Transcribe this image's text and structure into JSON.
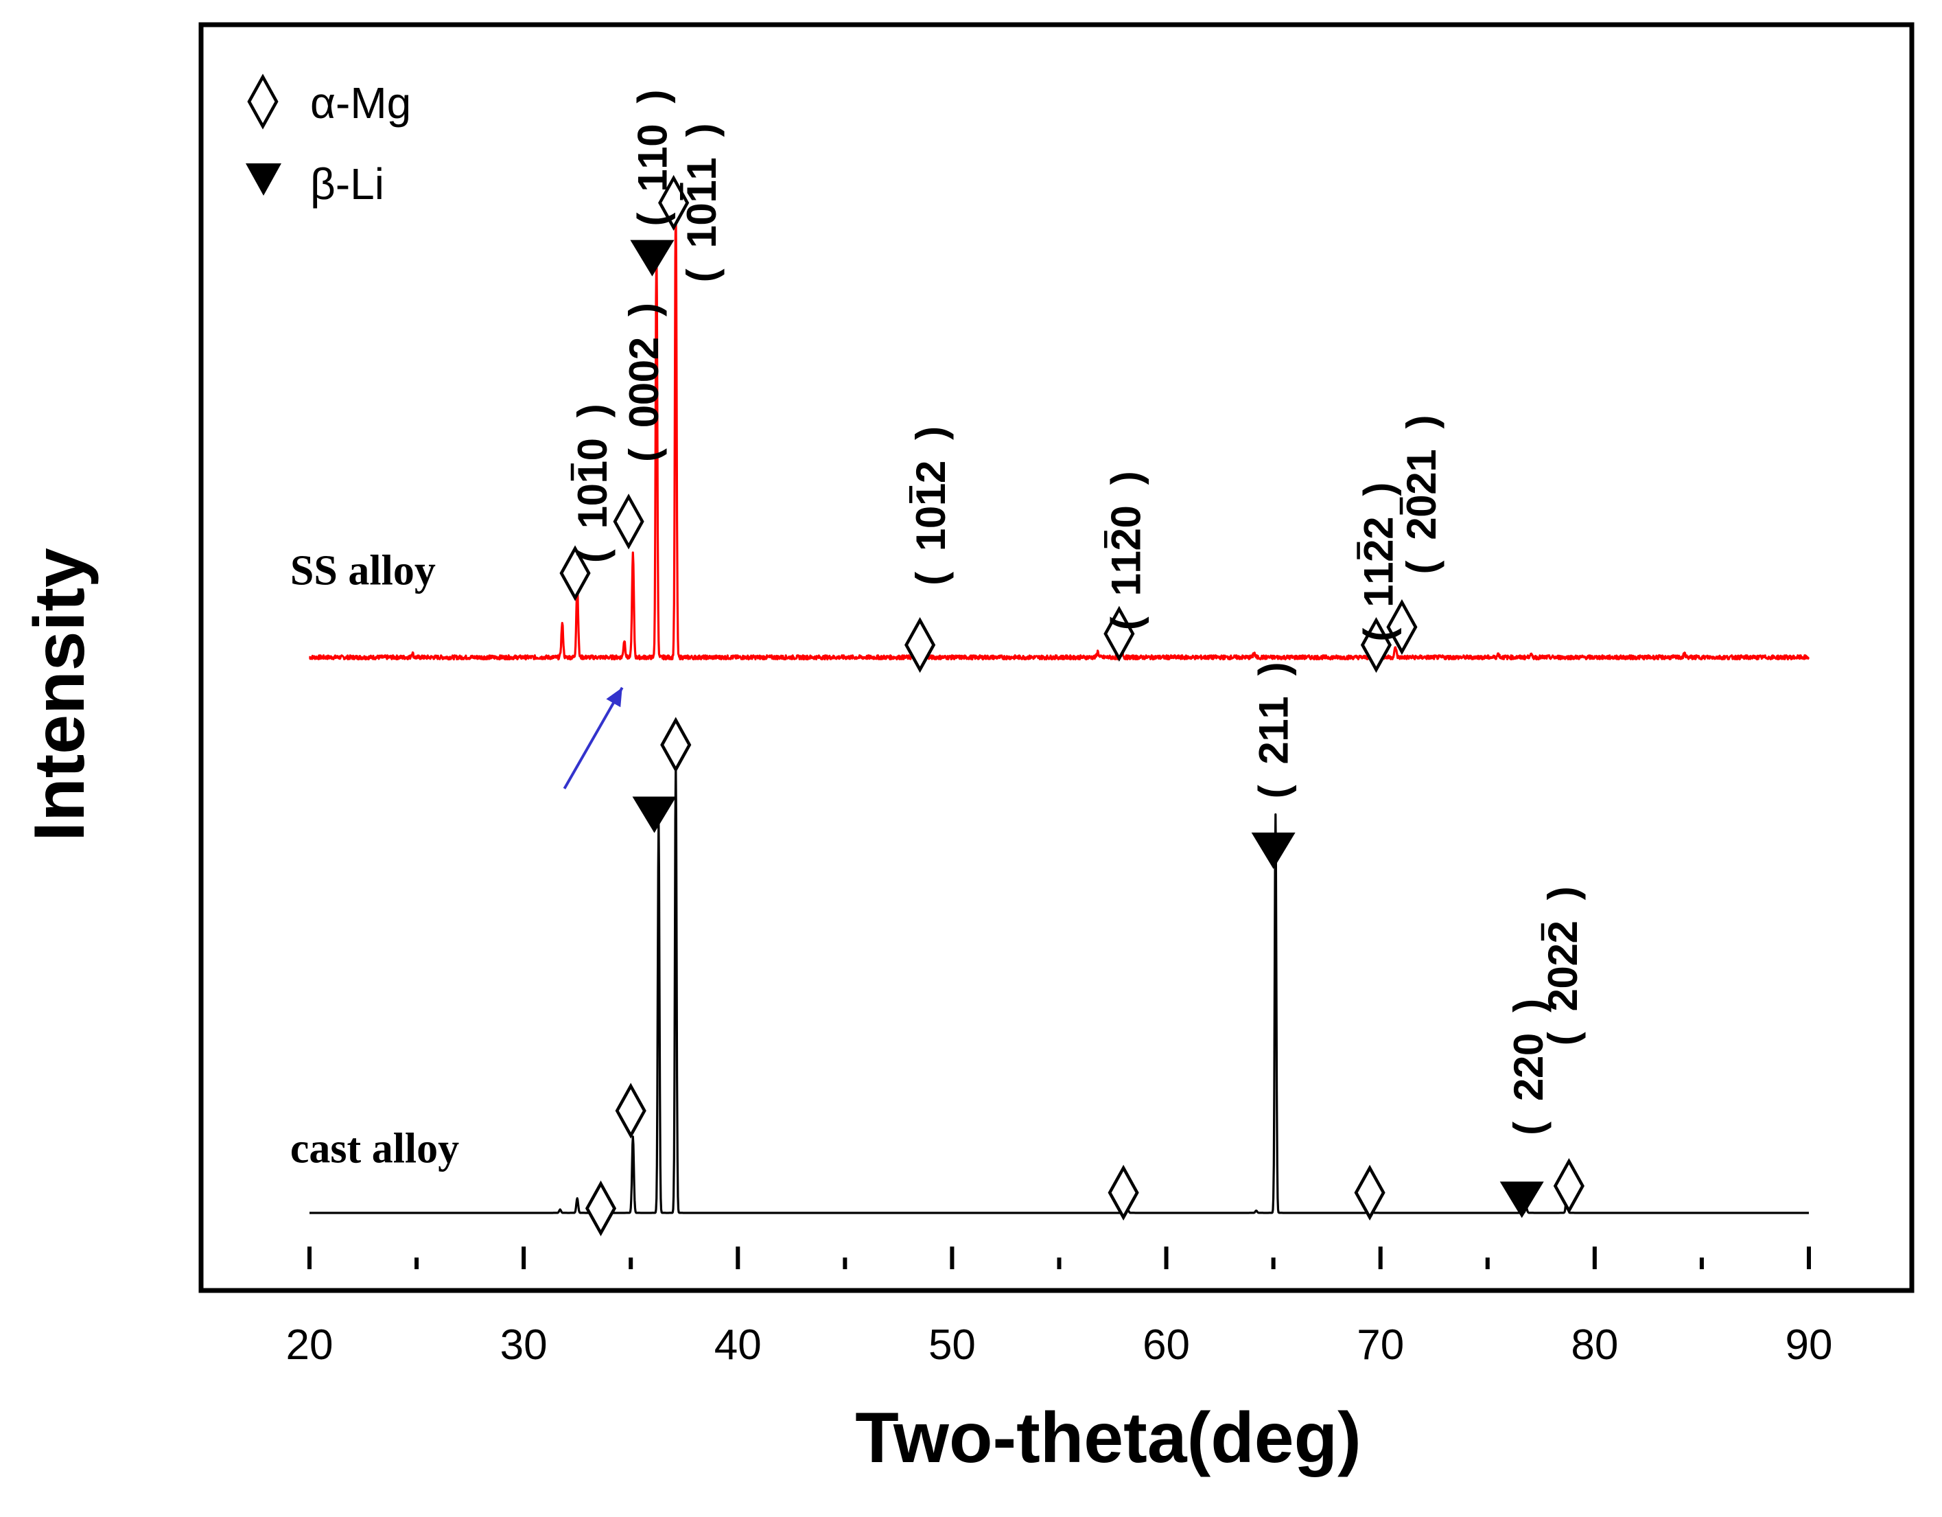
{
  "chart_data": {
    "type": "line",
    "title": "",
    "xlabel": "Two-theta(deg)",
    "ylabel": "Intensity",
    "xlim": [
      15,
      95
    ],
    "ylim": [
      0,
      100
    ],
    "x_ticks": [
      20,
      30,
      40,
      50,
      60,
      70,
      80,
      90
    ],
    "x_tick_labels": [
      "20",
      "30",
      "40",
      "50",
      "60",
      "70",
      "80",
      "90"
    ],
    "legend": {
      "position": "top-left",
      "entries": [
        {
          "symbol": "open-diamond",
          "label": "α-Mg"
        },
        {
          "symbol": "filled-down-triangle",
          "label": "β-Li"
        }
      ]
    },
    "series": [
      {
        "name": "SS alloy",
        "color": "#ff0000",
        "baseline": 52.5,
        "range": [
          20,
          90
        ],
        "peaks": [
          {
            "x": 24.8,
            "y": 0.4
          },
          {
            "x": 31.8,
            "y": 3.0
          },
          {
            "x": 32.5,
            "y": 6.5
          },
          {
            "x": 34.7,
            "y": 1.5
          },
          {
            "x": 35.1,
            "y": 9.2
          },
          {
            "x": 36.2,
            "y": 36.5
          },
          {
            "x": 37.1,
            "y": 40.5
          },
          {
            "x": 48.6,
            "y": 0.8
          },
          {
            "x": 56.8,
            "y": 0.5
          },
          {
            "x": 57.9,
            "y": 1.8
          },
          {
            "x": 64.1,
            "y": 0.4
          },
          {
            "x": 69.8,
            "y": 0.5
          },
          {
            "x": 70.7,
            "y": 0.9
          },
          {
            "x": 75.5,
            "y": 0.3
          },
          {
            "x": 77.0,
            "y": 0.3
          },
          {
            "x": 84.2,
            "y": 0.3
          }
        ]
      },
      {
        "name": "cast alloy",
        "color": "#000000",
        "baseline": 3,
        "range": [
          20,
          90
        ],
        "peaks": [
          {
            "x": 31.7,
            "y": 0.3
          },
          {
            "x": 32.5,
            "y": 1.3
          },
          {
            "x": 33.5,
            "y": 0.4
          },
          {
            "x": 35.1,
            "y": 6.8
          },
          {
            "x": 36.3,
            "y": 35.0
          },
          {
            "x": 37.1,
            "y": 40.0
          },
          {
            "x": 58.2,
            "y": 0.3
          },
          {
            "x": 64.2,
            "y": 0.2
          },
          {
            "x": 65.1,
            "y": 35.5
          },
          {
            "x": 69.6,
            "y": 0.3
          },
          {
            "x": 76.8,
            "y": 0.5
          },
          {
            "x": 78.7,
            "y": 1.8
          }
        ]
      }
    ],
    "markers": [
      {
        "kind": "alpha",
        "x": 32.4,
        "y": 60.0
      },
      {
        "kind": "alpha",
        "x": 34.9,
        "y": 64.6
      },
      {
        "kind": "beta",
        "x": 36.0,
        "y": 88.1
      },
      {
        "kind": "alpha",
        "x": 37.0,
        "y": 93.0
      },
      {
        "kind": "alpha",
        "x": 48.5,
        "y": 53.6
      },
      {
        "kind": "alpha",
        "x": 57.8,
        "y": 54.6
      },
      {
        "kind": "alpha",
        "x": 69.8,
        "y": 53.6
      },
      {
        "kind": "alpha",
        "x": 71.0,
        "y": 55.2
      },
      {
        "kind": "alpha",
        "x": 37.1,
        "y": 44.7
      },
      {
        "kind": "beta",
        "x": 36.1,
        "y": 38.5
      },
      {
        "kind": "beta",
        "x": 65.0,
        "y": 35.3
      },
      {
        "kind": "alpha",
        "x": 35.0,
        "y": 12.1
      },
      {
        "kind": "alpha",
        "x": 33.6,
        "y": 3.4
      },
      {
        "kind": "alpha",
        "x": 58.0,
        "y": 4.8
      },
      {
        "kind": "alpha",
        "x": 69.5,
        "y": 4.8
      },
      {
        "kind": "beta",
        "x": 76.6,
        "y": 4.2
      },
      {
        "kind": "alpha",
        "x": 78.8,
        "y": 5.4
      }
    ],
    "annotations": {
      "hkl": [
        {
          "x": 33.2,
          "y": 68,
          "digits": [
            "1",
            "0",
            "1",
            "0"
          ],
          "bars": [
            2
          ]
        },
        {
          "x": 35.6,
          "y": 77,
          "digits": [
            "0",
            "0",
            "0",
            "2"
          ],
          "bars": []
        },
        {
          "x": 36.0,
          "y": 97,
          "digits": [
            "1",
            "1",
            "0"
          ],
          "bars": []
        },
        {
          "x": 38.3,
          "y": 93,
          "digits": [
            "1",
            "0",
            "1",
            "1"
          ],
          "bars": [
            2
          ]
        },
        {
          "x": 49.0,
          "y": 66,
          "digits": [
            "1",
            "0",
            "1",
            "2"
          ],
          "bars": [
            2
          ]
        },
        {
          "x": 58.1,
          "y": 62,
          "digits": [
            "1",
            "1",
            "2",
            "0"
          ],
          "bars": [
            2
          ]
        },
        {
          "x": 69.9,
          "y": 61,
          "digits": [
            "1",
            "1",
            "2",
            "2"
          ],
          "bars": [
            2
          ]
        },
        {
          "x": 71.9,
          "y": 67,
          "digits": [
            "2",
            "0",
            "2",
            "1"
          ],
          "bars": [
            1
          ]
        },
        {
          "x": 65.0,
          "y": 46,
          "digits": [
            "2",
            "1",
            "1"
          ],
          "bars": []
        },
        {
          "x": 76.9,
          "y": 16,
          "digits": [
            "2",
            "2",
            "0"
          ],
          "bars": []
        },
        {
          "x": 78.5,
          "y": 25,
          "digits": [
            "2",
            "0",
            "2",
            "2"
          ],
          "bars": [
            3
          ]
        }
      ],
      "series_labels": [
        {
          "text": "SS alloy",
          "x": 19.1,
          "y": 59.0
        },
        {
          "text": "cast alloy",
          "x": 19.1,
          "y": 7.5
        }
      ],
      "arrow": {
        "from": [
          31.9,
          40.8
        ],
        "to": [
          34.6,
          49.8
        ],
        "color": "#3333cc"
      }
    }
  }
}
